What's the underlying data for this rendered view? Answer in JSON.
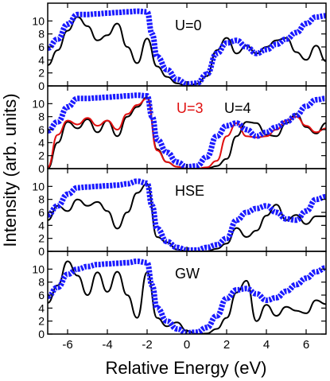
{
  "figure": {
    "xlabel": "Relative Energy (eV)",
    "ylabel": "Intensity (arb. units)"
  },
  "colors": {
    "theory": "#000000",
    "theory_alt": "#e01010",
    "experiment": "#1a1aff",
    "frame": "#000000"
  },
  "chart_data": [
    {
      "type": "line",
      "panel_label": "U=0",
      "xlim": [
        -7,
        7
      ],
      "ylim": [
        0,
        12
      ],
      "xticks": [
        -6,
        -4,
        -2,
        0,
        2,
        4,
        6
      ],
      "yticks": [
        0,
        2,
        4,
        6,
        8,
        10
      ],
      "series": [
        {
          "role": "theory",
          "color": "#000000",
          "x": [
            -7,
            -6.5,
            -6,
            -5.5,
            -5,
            -4.5,
            -4,
            -3.5,
            -3,
            -2.5,
            -2,
            -1.5,
            -1,
            -0.5,
            0,
            0.5,
            1,
            1.5,
            2,
            2.5,
            3,
            3.5,
            4,
            4.5,
            5,
            5.5,
            6,
            6.5,
            7
          ],
          "y": [
            3.2,
            5.5,
            8.5,
            10.6,
            9.2,
            7.0,
            7.8,
            9.6,
            6.0,
            3.5,
            7.3,
            3.0,
            1.4,
            0.4,
            0,
            0.3,
            1.5,
            5.5,
            7.4,
            5.0,
            6.2,
            5.0,
            6.0,
            7.0,
            7.4,
            5.2,
            4.0,
            6.2,
            3.8
          ]
        },
        {
          "role": "experiment",
          "color": "#1a1aff",
          "x": [
            -7,
            -6.5,
            -6,
            -5.5,
            -5,
            -4.5,
            -4,
            -3.5,
            -3,
            -2.5,
            -2,
            -1.75,
            -1.5,
            -1,
            -0.5,
            0,
            0.5,
            1,
            1.5,
            2,
            2.5,
            3,
            3.5,
            4,
            4.5,
            5,
            5.5,
            6,
            6.5,
            7
          ],
          "y": [
            5.8,
            7.2,
            9.5,
            11.0,
            11.0,
            11.1,
            11.2,
            11.3,
            11.4,
            11.5,
            11.4,
            8.0,
            4.5,
            2.5,
            1.0,
            0.3,
            0.4,
            1.8,
            5.0,
            6.6,
            7.0,
            6.0,
            5.0,
            5.6,
            6.4,
            7.2,
            8.2,
            9.6,
            10.6,
            10.8
          ]
        }
      ]
    },
    {
      "type": "line",
      "panel_label": "U=3",
      "panel_label_2": "U=4",
      "xlim": [
        -7,
        7
      ],
      "ylim": [
        0,
        12
      ],
      "xticks": [
        -6,
        -4,
        -2,
        0,
        2,
        4,
        6
      ],
      "yticks": [
        0,
        2,
        4,
        6,
        8,
        10
      ],
      "series": [
        {
          "role": "theory",
          "color": "#000000",
          "x": [
            -7,
            -6.5,
            -6,
            -5.5,
            -5,
            -4.5,
            -4,
            -3.5,
            -3,
            -2.5,
            -2,
            -1.5,
            -1,
            -0.5,
            0,
            0.5,
            1,
            1.5,
            2,
            2.5,
            3,
            3.5,
            4,
            4.5,
            5,
            5.5,
            6,
            6.5,
            7
          ],
          "y": [
            0,
            4.0,
            7.2,
            6.2,
            7.6,
            5.6,
            7.4,
            5.0,
            8.0,
            9.5,
            11.0,
            3.0,
            1.0,
            0.3,
            0,
            0,
            0,
            0.4,
            1.5,
            5.0,
            7.2,
            7.0,
            5.2,
            5.0,
            7.0,
            8.4,
            6.4,
            5.4,
            7.0
          ]
        },
        {
          "role": "theory_alt",
          "color": "#e01010",
          "x": [
            -7,
            -6.5,
            -6,
            -5.5,
            -5,
            -4.5,
            -4,
            -3.5,
            -3,
            -2.5,
            -2,
            -1.5,
            -1,
            -0.5,
            0,
            0.5,
            1,
            1.5,
            2,
            2.5,
            3,
            3.5,
            4,
            4.5,
            5,
            5.5,
            6,
            6.5,
            7
          ],
          "y": [
            0.2,
            5.2,
            7.4,
            6.8,
            7.8,
            6.6,
            7.4,
            6.0,
            8.4,
            9.8,
            10.8,
            2.8,
            1.0,
            0.3,
            0,
            0,
            0.2,
            1.2,
            5.0,
            7.0,
            5.0,
            4.8,
            5.0,
            6.0,
            7.4,
            8.0,
            6.6,
            5.6,
            6.2
          ]
        },
        {
          "role": "experiment",
          "color": "#1a1aff",
          "x": [
            -7,
            -6.5,
            -6,
            -5.5,
            -5,
            -4.5,
            -4,
            -3.5,
            -3,
            -2.5,
            -2,
            -1.75,
            -1.5,
            -1,
            -0.5,
            0,
            0.5,
            1,
            1.5,
            2,
            2.5,
            3,
            3.5,
            4,
            4.5,
            5,
            5.5,
            6,
            6.5,
            7
          ],
          "y": [
            5.8,
            7.2,
            9.5,
            10.8,
            10.8,
            10.9,
            11.0,
            11.1,
            11.2,
            11.3,
            11.2,
            8.0,
            4.5,
            2.5,
            1.0,
            0.3,
            0.4,
            1.8,
            5.0,
            6.6,
            7.0,
            6.0,
            5.0,
            5.6,
            6.4,
            7.2,
            8.2,
            9.6,
            10.6,
            10.8
          ]
        }
      ]
    },
    {
      "type": "line",
      "panel_label": "HSE",
      "xlim": [
        -7,
        7
      ],
      "ylim": [
        0,
        12
      ],
      "xticks": [
        -6,
        -4,
        -2,
        0,
        2,
        4,
        6
      ],
      "yticks": [
        0,
        2,
        4,
        6,
        8,
        10
      ],
      "series": [
        {
          "role": "theory",
          "color": "#000000",
          "x": [
            -7,
            -6.5,
            -6,
            -5.5,
            -5,
            -4.5,
            -4,
            -3.5,
            -3,
            -2.5,
            -2,
            -1.5,
            -1,
            -0.5,
            0,
            0.5,
            1,
            1.5,
            2,
            2.5,
            3,
            3.5,
            4,
            4.5,
            5,
            5.5,
            6,
            6.5,
            7
          ],
          "y": [
            4.8,
            7.0,
            6.2,
            8.0,
            7.0,
            7.6,
            6.2,
            3.5,
            6.0,
            9.0,
            10.4,
            2.2,
            1.4,
            0.3,
            0,
            0,
            0,
            0.4,
            1.2,
            3.6,
            2.2,
            3.2,
            5.5,
            7.2,
            4.8,
            5.6,
            4.2,
            5.4,
            5.4
          ]
        },
        {
          "role": "experiment",
          "color": "#1a1aff",
          "x": [
            -7,
            -6.5,
            -6,
            -5.5,
            -5,
            -4.5,
            -4,
            -3.5,
            -3,
            -2.5,
            -2,
            -1.75,
            -1.5,
            -1,
            -0.5,
            0,
            0.5,
            1,
            1.5,
            2,
            2.5,
            3,
            3.5,
            4,
            4.5,
            5,
            5.5,
            6,
            6.5,
            7
          ],
          "y": [
            5.6,
            7.0,
            8.8,
            9.8,
            9.9,
            10.0,
            10.1,
            10.2,
            10.4,
            10.8,
            10.5,
            7.0,
            3.5,
            1.5,
            0.6,
            0.2,
            0.2,
            0.6,
            1.0,
            2.0,
            4.8,
            6.0,
            6.6,
            7.0,
            6.0,
            5.0,
            4.8,
            6.2,
            8.0,
            8.4
          ]
        }
      ]
    },
    {
      "type": "line",
      "panel_label": "GW",
      "xlim": [
        -7,
        7
      ],
      "ylim": [
        0,
        12
      ],
      "xticks": [
        -6,
        -4,
        -2,
        0,
        2,
        4,
        6
      ],
      "yticks": [
        0,
        2,
        4,
        6,
        8,
        10
      ],
      "series": [
        {
          "role": "theory",
          "color": "#000000",
          "x": [
            -7,
            -6.5,
            -6,
            -5.5,
            -5,
            -4.5,
            -4,
            -3.5,
            -3,
            -2.5,
            -2,
            -1.5,
            -1,
            -0.5,
            0,
            0.5,
            1,
            1.5,
            2,
            2.5,
            3,
            3.5,
            4,
            4.5,
            5,
            5.5,
            6,
            6.5,
            7
          ],
          "y": [
            4.8,
            7.5,
            11.2,
            9.0,
            6.0,
            9.5,
            6.5,
            9.6,
            6.0,
            2.5,
            9.5,
            2.5,
            1.2,
            1.8,
            0.5,
            0,
            0.1,
            0.8,
            2.5,
            6.4,
            8.2,
            2.0,
            4.5,
            2.8,
            4.2,
            3.6,
            3.2,
            5.2,
            4.6
          ]
        },
        {
          "role": "experiment",
          "color": "#1a1aff",
          "x": [
            -7,
            -6.5,
            -6,
            -5.5,
            -5,
            -4.5,
            -4,
            -3.5,
            -3,
            -2.5,
            -2,
            -1.75,
            -1.5,
            -1,
            -0.5,
            0,
            0.5,
            1,
            1.5,
            2,
            2.5,
            3,
            3.5,
            4,
            4.5,
            5,
            5.5,
            6,
            6.5,
            7
          ],
          "y": [
            5.8,
            7.2,
            9.2,
            10.0,
            10.4,
            10.7,
            10.8,
            10.9,
            11.0,
            11.2,
            11.0,
            7.5,
            4.0,
            2.0,
            0.8,
            0.2,
            0.3,
            1.0,
            2.8,
            5.5,
            6.8,
            7.0,
            6.2,
            5.2,
            5.6,
            6.6,
            7.6,
            8.6,
            9.6,
            10.2
          ]
        }
      ]
    }
  ]
}
